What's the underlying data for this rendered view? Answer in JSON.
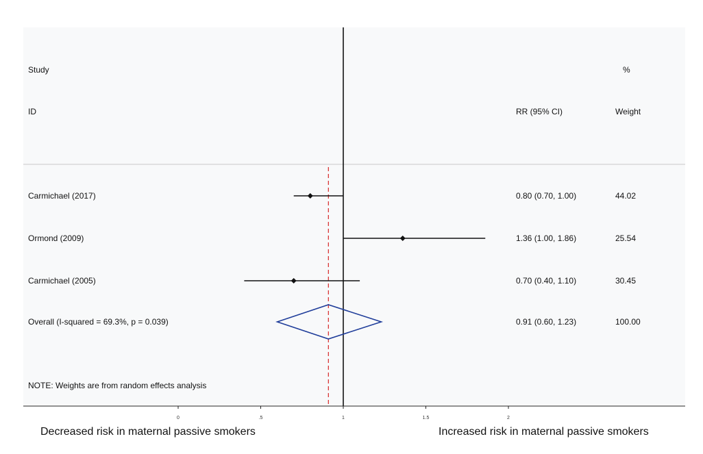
{
  "chart_data": {
    "type": "forest",
    "header": {
      "study_line1": "Study",
      "study_line2": "ID",
      "estimate_col": "RR (95% CI)",
      "weight_line1": "%",
      "weight_line2": "Weight"
    },
    "studies": [
      {
        "id": "Carmichael (2017)",
        "rr": 0.8,
        "lo": 0.7,
        "hi": 1.0,
        "ci_text": "0.80 (0.70, 1.00)",
        "weight": "44.02"
      },
      {
        "id": "Ormond (2009)",
        "rr": 1.36,
        "lo": 1.0,
        "hi": 1.86,
        "ci_text": "1.36 (1.00, 1.86)",
        "weight": "25.54"
      },
      {
        "id": "Carmichael (2005)",
        "rr": 0.7,
        "lo": 0.4,
        "hi": 1.1,
        "ci_text": "0.70 (0.40, 1.10)",
        "weight": "30.45"
      }
    ],
    "overall": {
      "id": "Overall  (I-squared = 69.3%, p = 0.039)",
      "rr": 0.91,
      "lo": 0.6,
      "hi": 1.23,
      "ci_text": "0.91 (0.60, 1.23)",
      "weight": "100.00"
    },
    "note": "NOTE: Weights are from random effects analysis",
    "null_line": 1,
    "x_ticks": [
      {
        "value": 0,
        "label": "0"
      },
      {
        "value": 0.5,
        "label": ".5"
      },
      {
        "value": 1,
        "label": "1"
      },
      {
        "value": 1.5,
        "label": "1.5"
      },
      {
        "value": 2,
        "label": "2"
      }
    ],
    "xlim": [
      0,
      2
    ],
    "left_label": "Decreased risk in maternal passive smokers",
    "right_label": "Increased risk in maternal passive smokers",
    "colors": {
      "marker": "#111111",
      "diamond": "#1f3d9a",
      "overall_line": "#d62728",
      "separator": "#c8c8c8"
    }
  }
}
